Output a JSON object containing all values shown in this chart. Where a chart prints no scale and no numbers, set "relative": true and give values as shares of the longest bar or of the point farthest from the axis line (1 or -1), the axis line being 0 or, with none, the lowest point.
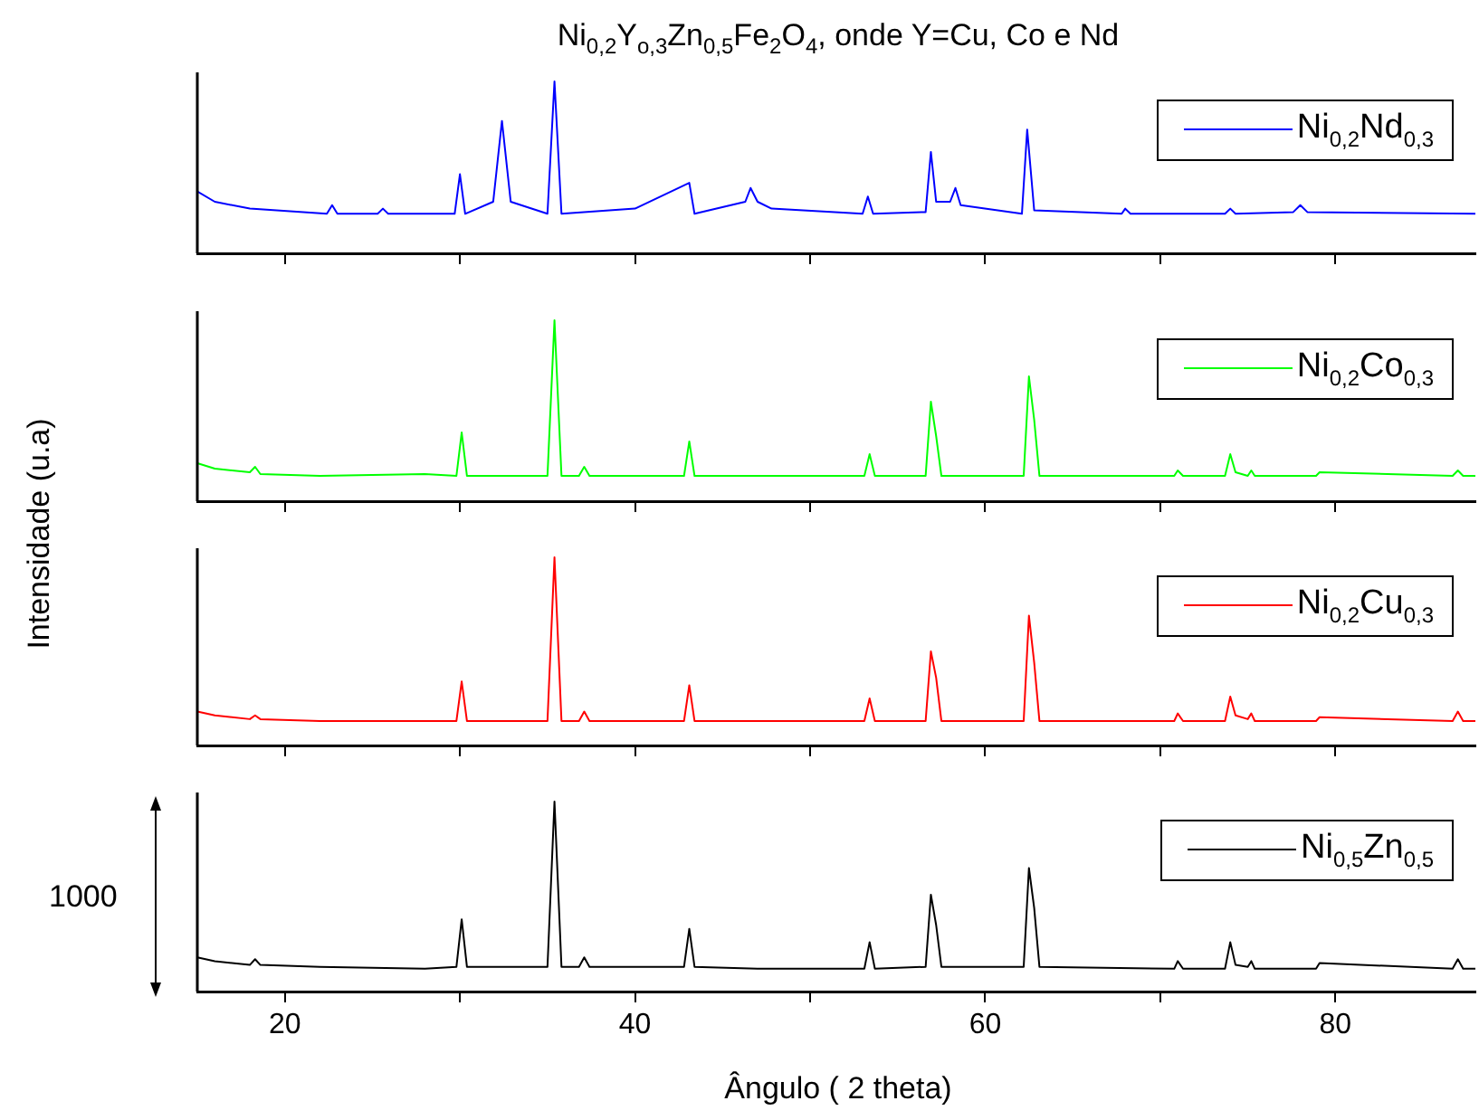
{
  "chart_data": [
    {
      "type": "line",
      "title": "Ni$_{0,2}$Y$_{o,3}$Zn$_{0,5}$Fe$_{2}$O$_{4}$, onde Y=Cu, Co e Nd",
      "ylabel": "Intensidade (u.a)",
      "relative": true,
      "legend": "top right",
      "tick_labels": false,
      "xlim": [
        15,
        88
      ],
      "xticks": [
        20,
        {
          "value": 30,
          "label": null
        },
        40,
        {
          "value": 50,
          "label": null
        },
        60,
        {
          "value": 70,
          "label": null
        },
        80
      ],
      "series": [
        {
          "name": "Ni$_{0,2}$Nd$_{0,3}$",
          "color": "#0000ff",
          "x": [
            15,
            16,
            18,
            22.4,
            22.7,
            23,
            25.3,
            25.6,
            25.9,
            29.7,
            30,
            30.3,
            31.9,
            32.4,
            32.9,
            35,
            35.4,
            35.8,
            40,
            43.1,
            43.4,
            46.3,
            46.6,
            47,
            47.8,
            53,
            53.3,
            53.6,
            56.6,
            56.9,
            57.2,
            58,
            58.3,
            58.6,
            62.1,
            62.4,
            62.8,
            67.8,
            68,
            68.3,
            73.7,
            74,
            74.3,
            77.6,
            78,
            78.4,
            88
          ],
          "values": [
            0.36,
            0.3,
            0.26,
            0.23,
            0.28,
            0.23,
            0.23,
            0.26,
            0.23,
            0.23,
            0.46,
            0.23,
            0.3,
            0.77,
            0.3,
            0.23,
            1,
            0.23,
            0.26,
            0.41,
            0.23,
            0.3,
            0.38,
            0.3,
            0.26,
            0.23,
            0.33,
            0.23,
            0.24,
            0.59,
            0.3,
            0.3,
            0.38,
            0.28,
            0.23,
            0.72,
            0.25,
            0.23,
            0.26,
            0.23,
            0.23,
            0.26,
            0.23,
            0.24,
            0.28,
            0.24,
            0.23
          ]
        }
      ]
    },
    {
      "type": "line",
      "relative": true,
      "legend": "top right",
      "tick_labels": false,
      "xlim": [
        15,
        88
      ],
      "xticks": [
        20,
        {
          "value": 30,
          "label": null
        },
        40,
        {
          "value": 50,
          "label": null
        },
        60,
        {
          "value": 70,
          "label": null
        },
        80
      ],
      "series": [
        {
          "name": "Ni$_{0,2}$Co$_{0,3}$",
          "color": "#00ff00",
          "x": [
            15,
            16,
            18,
            18.3,
            18.6,
            22,
            28,
            29.8,
            30.1,
            30.4,
            35.0,
            35.4,
            35.8,
            36.8,
            37.1,
            37.4,
            42.8,
            43.1,
            43.4,
            47,
            53.1,
            53.4,
            53.7,
            56.6,
            56.9,
            57.2,
            57.5,
            62.2,
            62.5,
            62.8,
            63.1,
            70.8,
            71,
            71.3,
            73.7,
            74,
            74.3,
            75,
            75.2,
            75.4,
            78.9,
            79.1,
            86.7,
            87,
            87.3,
            88
          ],
          "values": [
            0.21,
            0.18,
            0.16,
            0.19,
            0.15,
            0.14,
            0.15,
            0.14,
            0.38,
            0.14,
            0.14,
            1,
            0.14,
            0.14,
            0.19,
            0.14,
            0.14,
            0.33,
            0.14,
            0.14,
            0.14,
            0.26,
            0.14,
            0.14,
            0.55,
            0.36,
            0.14,
            0.14,
            0.69,
            0.45,
            0.14,
            0.14,
            0.17,
            0.14,
            0.14,
            0.26,
            0.16,
            0.14,
            0.17,
            0.14,
            0.14,
            0.16,
            0.14,
            0.17,
            0.14,
            0.14
          ]
        }
      ]
    },
    {
      "type": "line",
      "relative": true,
      "legend": "top right",
      "tick_labels": false,
      "xlim": [
        15,
        88
      ],
      "xticks": [
        20,
        {
          "value": 30,
          "label": null
        },
        40,
        {
          "value": 50,
          "label": null
        },
        60,
        {
          "value": 70,
          "label": null
        },
        80
      ],
      "series": [
        {
          "name": "Ni$_{0,2}$Cu$_{0,3}$",
          "color": "#ff0000",
          "x": [
            15,
            16,
            18,
            18.3,
            18.6,
            22,
            28,
            29.8,
            30.1,
            30.4,
            35.0,
            35.4,
            35.8,
            36.8,
            37.1,
            37.4,
            42.8,
            43.1,
            43.4,
            47,
            53.1,
            53.4,
            53.7,
            56.6,
            56.9,
            57.2,
            57.5,
            62.2,
            62.5,
            62.8,
            63.1,
            70.8,
            71,
            71.3,
            73.7,
            74,
            74.3,
            75,
            75.2,
            75.4,
            78.9,
            79.1,
            86.7,
            87,
            87.3,
            88
          ],
          "values": [
            0.18,
            0.16,
            0.14,
            0.16,
            0.14,
            0.13,
            0.13,
            0.13,
            0.34,
            0.13,
            0.13,
            1,
            0.13,
            0.13,
            0.18,
            0.13,
            0.13,
            0.32,
            0.13,
            0.13,
            0.13,
            0.25,
            0.13,
            0.13,
            0.5,
            0.36,
            0.13,
            0.13,
            0.69,
            0.44,
            0.13,
            0.13,
            0.17,
            0.13,
            0.13,
            0.26,
            0.16,
            0.14,
            0.17,
            0.13,
            0.13,
            0.15,
            0.13,
            0.18,
            0.13,
            0.13
          ]
        }
      ]
    },
    {
      "type": "line",
      "xlabel": "Ângulo ( 2 theta)",
      "annotations": [
        "1000"
      ],
      "relative": true,
      "legend": "top right",
      "tick_labels": "x",
      "xlim": [
        15,
        88
      ],
      "xticks": [
        20,
        {
          "value": 30,
          "label": null
        },
        40,
        {
          "value": 50,
          "label": null
        },
        60,
        {
          "value": 70,
          "label": null
        },
        80
      ],
      "series": [
        {
          "name": "Ni$_{0,5}$Zn$_{0,5}$",
          "color": "#000000",
          "x": [
            15,
            16,
            18,
            18.3,
            18.6,
            22,
            28,
            29.8,
            30.1,
            30.4,
            35.0,
            35.4,
            35.8,
            36.8,
            37.1,
            37.4,
            42.8,
            43.1,
            43.4,
            47,
            53.1,
            53.4,
            53.7,
            56.6,
            56.9,
            57.2,
            57.5,
            62.2,
            62.5,
            62.8,
            63.1,
            70.8,
            71,
            71.3,
            73.7,
            74,
            74.3,
            75,
            75.2,
            75.4,
            78.9,
            79.1,
            86.7,
            87,
            87.3,
            88
          ],
          "values": [
            0.18,
            0.16,
            0.14,
            0.17,
            0.14,
            0.13,
            0.12,
            0.13,
            0.38,
            0.13,
            0.13,
            1,
            0.13,
            0.13,
            0.18,
            0.13,
            0.13,
            0.33,
            0.13,
            0.12,
            0.12,
            0.26,
            0.12,
            0.13,
            0.51,
            0.35,
            0.13,
            0.13,
            0.65,
            0.44,
            0.13,
            0.12,
            0.16,
            0.12,
            0.12,
            0.26,
            0.14,
            0.13,
            0.16,
            0.12,
            0.12,
            0.15,
            0.12,
            0.17,
            0.12,
            0.12
          ]
        }
      ]
    }
  ]
}
